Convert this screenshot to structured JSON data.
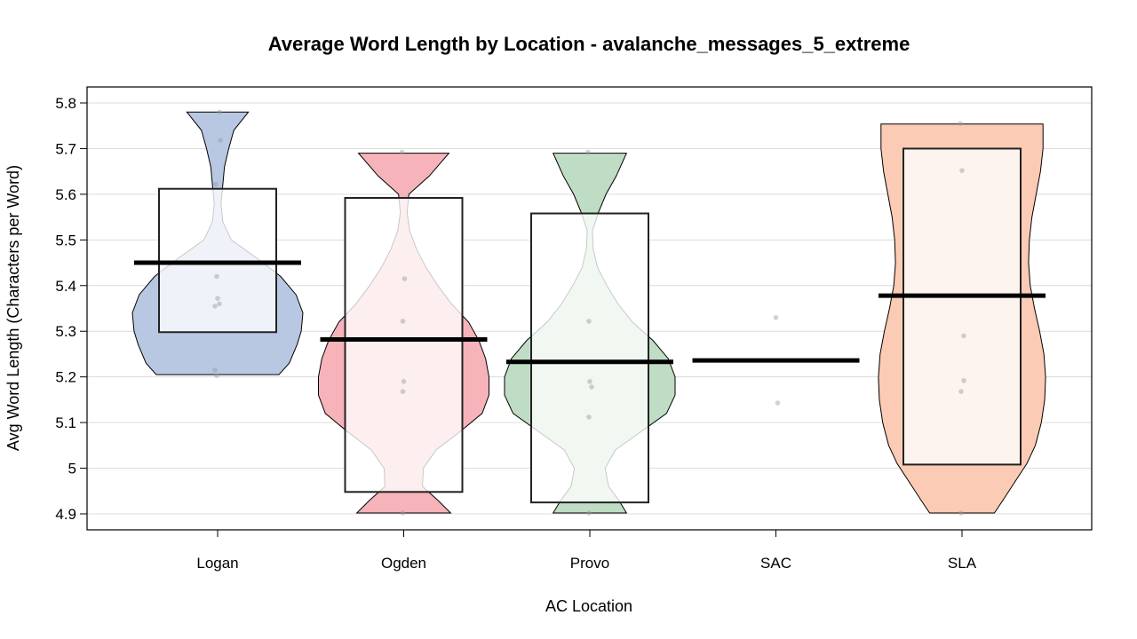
{
  "chart_data": {
    "type": "pirate",
    "title": "Average Word Length by Location - avalanche_messages_5_extreme",
    "xlabel": "AC Location",
    "ylabel": "Avg Word Length (Characters per Word)",
    "ylim": [
      4.865,
      5.835
    ],
    "y_ticks": [
      4.9,
      5,
      5.1,
      5.2,
      5.3,
      5.4,
      5.5,
      5.6,
      5.7,
      5.8
    ],
    "y_tick_labels": [
      "4.9",
      "5",
      "5.1",
      "5.2",
      "5.3",
      "5.4",
      "5.5",
      "5.6",
      "5.7",
      "5.8"
    ],
    "grid": true,
    "categories": [
      "Logan",
      "Ogden",
      "Provo",
      "SAC",
      "SLA"
    ],
    "groups": [
      {
        "name": "Logan",
        "color": "#b8c8e3",
        "mean": 5.45,
        "box": [
          5.298,
          5.612
        ],
        "violin": true,
        "density": [
          [
            5.205,
            0.72
          ],
          [
            5.23,
            0.84
          ],
          [
            5.27,
            0.93
          ],
          [
            5.3,
            0.98
          ],
          [
            5.34,
            1.0
          ],
          [
            5.38,
            0.92
          ],
          [
            5.42,
            0.74
          ],
          [
            5.46,
            0.46
          ],
          [
            5.5,
            0.16
          ],
          [
            5.54,
            0.06
          ],
          [
            5.58,
            0.04
          ],
          [
            5.62,
            0.06
          ],
          [
            5.66,
            0.08
          ],
          [
            5.7,
            0.13
          ],
          [
            5.74,
            0.19
          ],
          [
            5.78,
            0.36
          ]
        ],
        "points": [
          5.78,
          5.718,
          5.622,
          5.42,
          5.372,
          5.36,
          5.355,
          5.215,
          5.203
        ]
      },
      {
        "name": "Ogden",
        "color": "#f6b3b9",
        "mean": 5.282,
        "box": [
          4.948,
          5.592
        ],
        "violin": true,
        "density": [
          [
            4.902,
            0.55
          ],
          [
            4.93,
            0.4
          ],
          [
            4.96,
            0.22
          ],
          [
            5.0,
            0.23
          ],
          [
            5.04,
            0.38
          ],
          [
            5.08,
            0.66
          ],
          [
            5.12,
            0.92
          ],
          [
            5.16,
            1.0
          ],
          [
            5.2,
            1.0
          ],
          [
            5.24,
            0.96
          ],
          [
            5.28,
            0.88
          ],
          [
            5.32,
            0.76
          ],
          [
            5.36,
            0.56
          ],
          [
            5.4,
            0.4
          ],
          [
            5.44,
            0.26
          ],
          [
            5.48,
            0.15
          ],
          [
            5.52,
            0.07
          ],
          [
            5.56,
            0.04
          ],
          [
            5.6,
            0.06
          ],
          [
            5.64,
            0.3
          ],
          [
            5.69,
            0.53
          ]
        ],
        "points": [
          5.692,
          5.415,
          5.322,
          5.19,
          5.168,
          4.902
        ]
      },
      {
        "name": "Provo",
        "color": "#bfddc5",
        "mean": 5.233,
        "box": [
          4.925,
          5.558
        ],
        "violin": true,
        "density": [
          [
            4.902,
            0.43
          ],
          [
            4.93,
            0.34
          ],
          [
            4.96,
            0.22
          ],
          [
            5.0,
            0.18
          ],
          [
            5.04,
            0.3
          ],
          [
            5.08,
            0.6
          ],
          [
            5.12,
            0.9
          ],
          [
            5.16,
            1.0
          ],
          [
            5.2,
            1.0
          ],
          [
            5.24,
            0.92
          ],
          [
            5.28,
            0.74
          ],
          [
            5.32,
            0.5
          ],
          [
            5.36,
            0.33
          ],
          [
            5.4,
            0.2
          ],
          [
            5.44,
            0.09
          ],
          [
            5.48,
            0.04
          ],
          [
            5.52,
            0.03
          ],
          [
            5.56,
            0.1
          ],
          [
            5.6,
            0.19
          ],
          [
            5.64,
            0.31
          ],
          [
            5.69,
            0.43
          ]
        ],
        "points": [
          5.692,
          5.322,
          5.19,
          5.178,
          5.112,
          4.902
        ]
      },
      {
        "name": "SAC",
        "color": "#d9d9d9",
        "mean": 5.236,
        "box": null,
        "violin": false,
        "density": [],
        "points": [
          5.33,
          5.143
        ]
      },
      {
        "name": "SLA",
        "color": "#fbcbb5",
        "mean": 5.378,
        "box": [
          5.008,
          5.7
        ],
        "violin": true,
        "density": [
          [
            4.902,
            0.38
          ],
          [
            4.93,
            0.48
          ],
          [
            4.97,
            0.62
          ],
          [
            5.01,
            0.76
          ],
          [
            5.05,
            0.86
          ],
          [
            5.1,
            0.93
          ],
          [
            5.15,
            0.97
          ],
          [
            5.2,
            0.98
          ],
          [
            5.25,
            0.96
          ],
          [
            5.3,
            0.91
          ],
          [
            5.35,
            0.85
          ],
          [
            5.4,
            0.8
          ],
          [
            5.45,
            0.78
          ],
          [
            5.5,
            0.79
          ],
          [
            5.55,
            0.82
          ],
          [
            5.6,
            0.87
          ],
          [
            5.65,
            0.92
          ],
          [
            5.7,
            0.95
          ],
          [
            5.754,
            0.95
          ]
        ],
        "points": [
          5.755,
          5.652,
          5.29,
          5.192,
          5.168,
          4.902
        ]
      }
    ]
  }
}
